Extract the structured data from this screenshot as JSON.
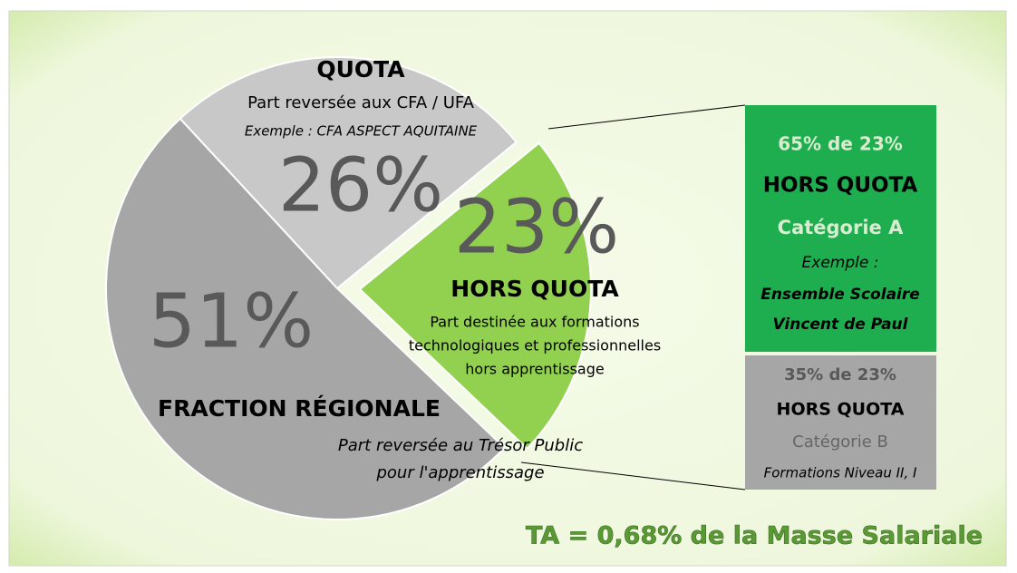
{
  "chart_data": {
    "type": "pie",
    "categories": [
      "QUOTA",
      "HORS QUOTA",
      "FRACTION RÉGIONALE"
    ],
    "values": [
      26,
      23,
      51
    ],
    "value_labels": [
      "26%",
      "23%",
      "51%"
    ],
    "colors": [
      "#c8c8c8",
      "#92d050",
      "#a6a6a6"
    ],
    "descriptions": [
      [
        "Part reversée aux CFA / UFA",
        "Exemple : CFA ASPECT AQUITAINE"
      ],
      [
        "Part destinée aux formations",
        "technologiques et professionnelles",
        "hors apprentissage"
      ],
      [
        "Part reversée au Trésor Public",
        "pour l'apprentissage"
      ]
    ],
    "breakdown": [
      {
        "color": "#1fae4f",
        "lines": [
          "65% de 23%",
          "HORS QUOTA",
          "Catégorie A",
          "Exemple :",
          "Ensemble Scolaire",
          "Vincent de Paul"
        ]
      },
      {
        "color": "#a6a6a6",
        "lines": [
          "35% de 23%",
          "HORS QUOTA",
          "Catégorie B",
          "Formations Niveau II, I"
        ]
      }
    ],
    "footnote": "TA = 0,68% de la Masse Salariale"
  }
}
